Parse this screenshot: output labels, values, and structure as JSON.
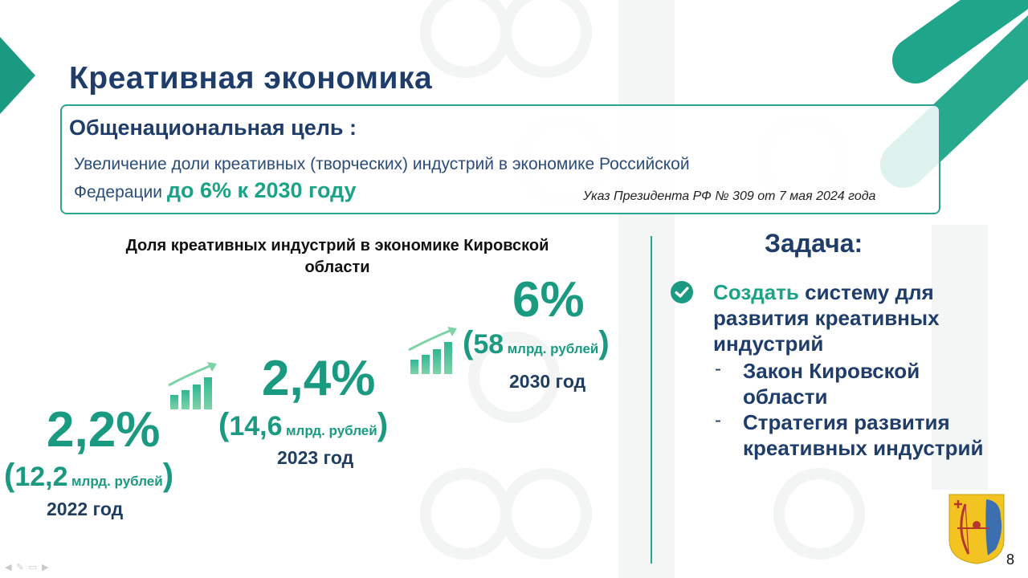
{
  "slide": {
    "title": "Креативная экономика",
    "page_number": "8",
    "colors": {
      "navy": "#1f3d6b",
      "teal": "#1aa386",
      "box_border": "#2aa592"
    }
  },
  "goal": {
    "heading": "Общенациональная цель :",
    "line1": "Увеличение доли креативных (творческих) индустрий в экономике Российской",
    "line2_prefix": "Федерации ",
    "line2_highlight": "до 6% к 2030 году",
    "decree": "Указ Президента РФ № 309 от 7 мая 2024 года"
  },
  "chart": {
    "title": "Доля креативных индустрий в экономике Кировской области",
    "milestones": [
      {
        "percent": "2,2%",
        "amount": "12,2",
        "unit": "млрд. рублей",
        "year": "2022 год"
      },
      {
        "percent": "2,4%",
        "amount": "14,6",
        "unit": "млрд. рублей",
        "year": "2023 год"
      },
      {
        "percent": "6%",
        "amount": "58",
        "unit": "млрд. рублей",
        "year": "2030 год"
      }
    ],
    "growth_icon": "bar-chart-growth-icon"
  },
  "task": {
    "heading": "Задача:",
    "check_icon": "check-circle-icon",
    "lead_accent": "Создать",
    "lead_rest": " систему для развития креативных индустрий",
    "items": [
      {
        "dash": "-",
        "text": "Закон Кировской области"
      },
      {
        "dash": "-",
        "text": "Стратегия развития креативных индустрий"
      }
    ]
  },
  "logo": {
    "name": "kirov-oblast-coat-of-arms"
  },
  "playback_icons": [
    "arrow-left-icon",
    "pen-icon",
    "slides-icon",
    "arrow-right-icon"
  ]
}
